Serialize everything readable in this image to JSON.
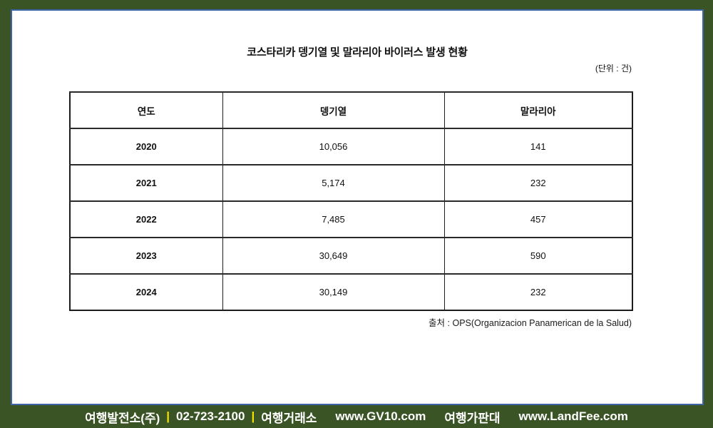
{
  "title": "코스타리카 뎅기열 및 말라리아 바이러스 발생 현황",
  "unit_note": "(단위 : 건)",
  "table": {
    "columns": [
      "연도",
      "뎅기열",
      "말라리아"
    ],
    "rows": [
      {
        "year": "2020",
        "dengue": "10,056",
        "malaria": "141"
      },
      {
        "year": "2021",
        "dengue": "5,174",
        "malaria": "232"
      },
      {
        "year": "2022",
        "dengue": "7,485",
        "malaria": "457"
      },
      {
        "year": "2023",
        "dengue": "30,649",
        "malaria": "590"
      },
      {
        "year": "2024",
        "dengue": "30,149",
        "malaria": "232"
      }
    ]
  },
  "source": "출처 : OPS(Organizacion Panamerican de la Salud)",
  "footer": {
    "company": "여행발전소(주)",
    "separator": "|",
    "phone": "02-723-2100",
    "market_label": "여행거래소",
    "market_url": "www.GV10.com",
    "stand_label": "여행가판대",
    "stand_url": "www.LandFee.com"
  },
  "colors": {
    "frame_green": "#3a5425",
    "inner_line_blue": "#3c64a6",
    "separator_yellow": "#f5e400",
    "footer_text": "#ffffff",
    "table_border": "#1c1c1c"
  }
}
